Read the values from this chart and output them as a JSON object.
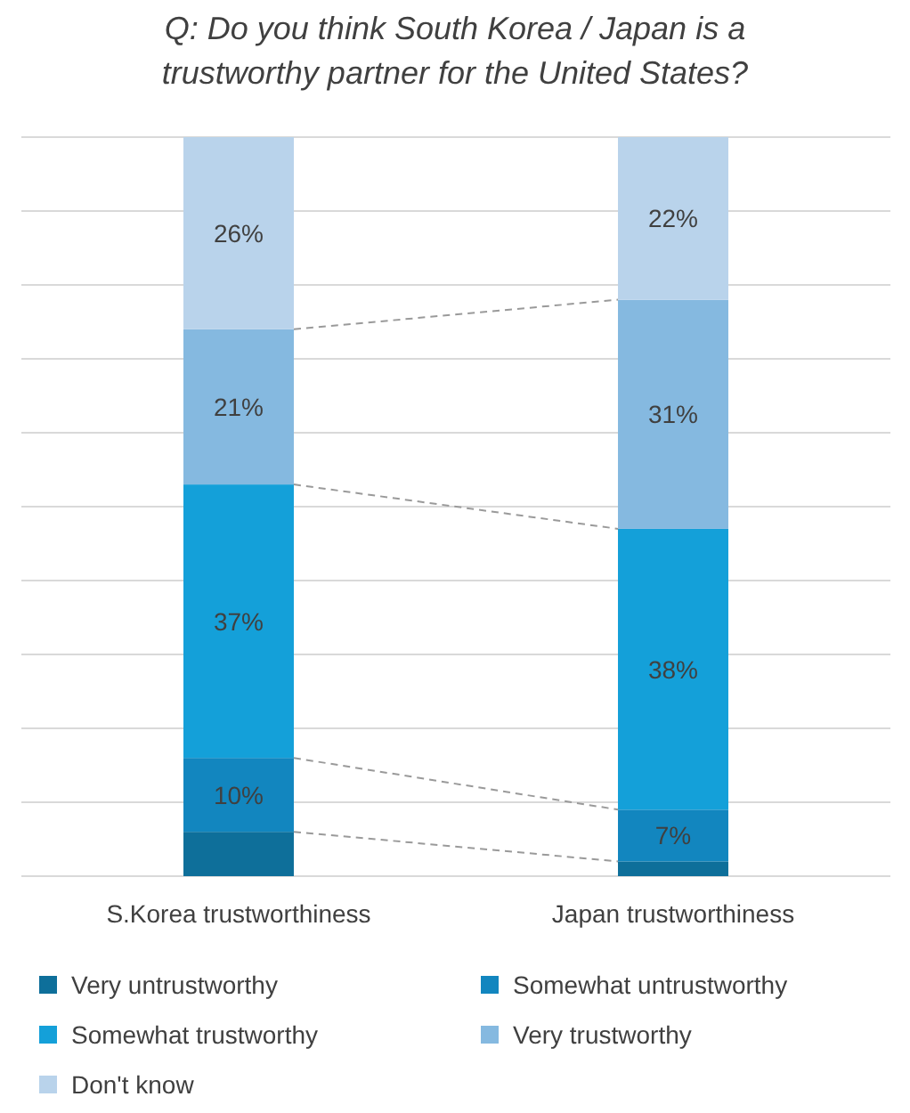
{
  "chart_data": {
    "type": "bar",
    "title": "Q: Do you think South Korea / Japan is a trustworthy partner for the United States?",
    "categories": [
      "S.Korea trustworthiness",
      "Japan trustworthiness"
    ],
    "stacked": true,
    "ylim": [
      0,
      100
    ],
    "yticks": [
      {
        "value": 0,
        "label": null
      },
      {
        "value": 10,
        "label": null
      },
      {
        "value": 20,
        "label": null
      },
      {
        "value": 30,
        "label": null
      },
      {
        "value": 40,
        "label": null
      },
      {
        "value": 50,
        "label": null
      },
      {
        "value": 60,
        "label": null
      },
      {
        "value": 70,
        "label": null
      },
      {
        "value": 80,
        "label": null
      },
      {
        "value": 90,
        "label": null
      },
      {
        "value": 100,
        "label": null
      }
    ],
    "grid": "y",
    "tick_labels": "x",
    "legend": "bottom",
    "series": [
      {
        "name": "Very untrustworthy",
        "color": "#0e6f9a",
        "values": [
          6,
          2
        ],
        "value_labels": [
          null,
          null
        ]
      },
      {
        "name": "Somewhat untrustworthy",
        "color": "#1286bf",
        "values": [
          10,
          7
        ],
        "value_labels": [
          "10%",
          "7%"
        ]
      },
      {
        "name": "Somewhat trustworthy",
        "color": "#14a0d9",
        "values": [
          37,
          38
        ],
        "value_labels": [
          "37%",
          "38%"
        ]
      },
      {
        "name": "Very trustworthy",
        "color": "#85b9e0",
        "values": [
          21,
          31
        ],
        "value_labels": [
          "21%",
          "31%"
        ]
      },
      {
        "name": "Don't know",
        "color": "#b9d3eb",
        "values": [
          26,
          22
        ],
        "value_labels": [
          "26%",
          "22%"
        ]
      }
    ]
  }
}
